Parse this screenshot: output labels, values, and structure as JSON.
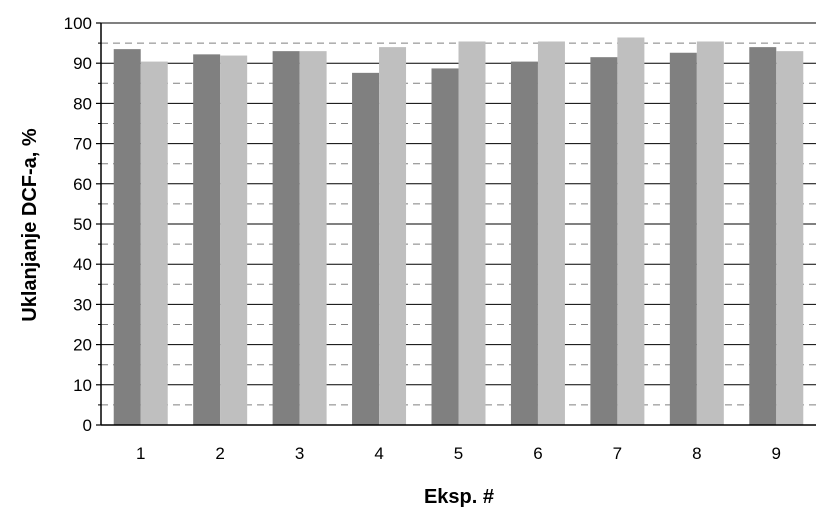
{
  "chart_data": {
    "type": "bar",
    "title": "",
    "xlabel": "Eksp. #",
    "ylabel": "Uklanjanje DCF-a, %",
    "categories": [
      "1",
      "2",
      "3",
      "4",
      "5",
      "6",
      "7",
      "8",
      "9"
    ],
    "series": [
      {
        "values": [
          93.5,
          92.2,
          93.0,
          87.6,
          88.7,
          90.4,
          91.5,
          92.6,
          94.0
        ],
        "color": "#808080"
      },
      {
        "values": [
          90.4,
          91.9,
          93.0,
          94.0,
          95.4,
          95.4,
          96.4,
          95.4,
          93.0
        ],
        "color": "#bfbfbf"
      }
    ],
    "ylim": [
      0,
      100
    ],
    "yticks": [
      "0",
      "10",
      "20",
      "30",
      "40",
      "50",
      "60",
      "70",
      "80",
      "90",
      "100"
    ],
    "grid": {
      "major": true,
      "major_step": 10,
      "minor_dashed": true
    },
    "legend": "none"
  }
}
